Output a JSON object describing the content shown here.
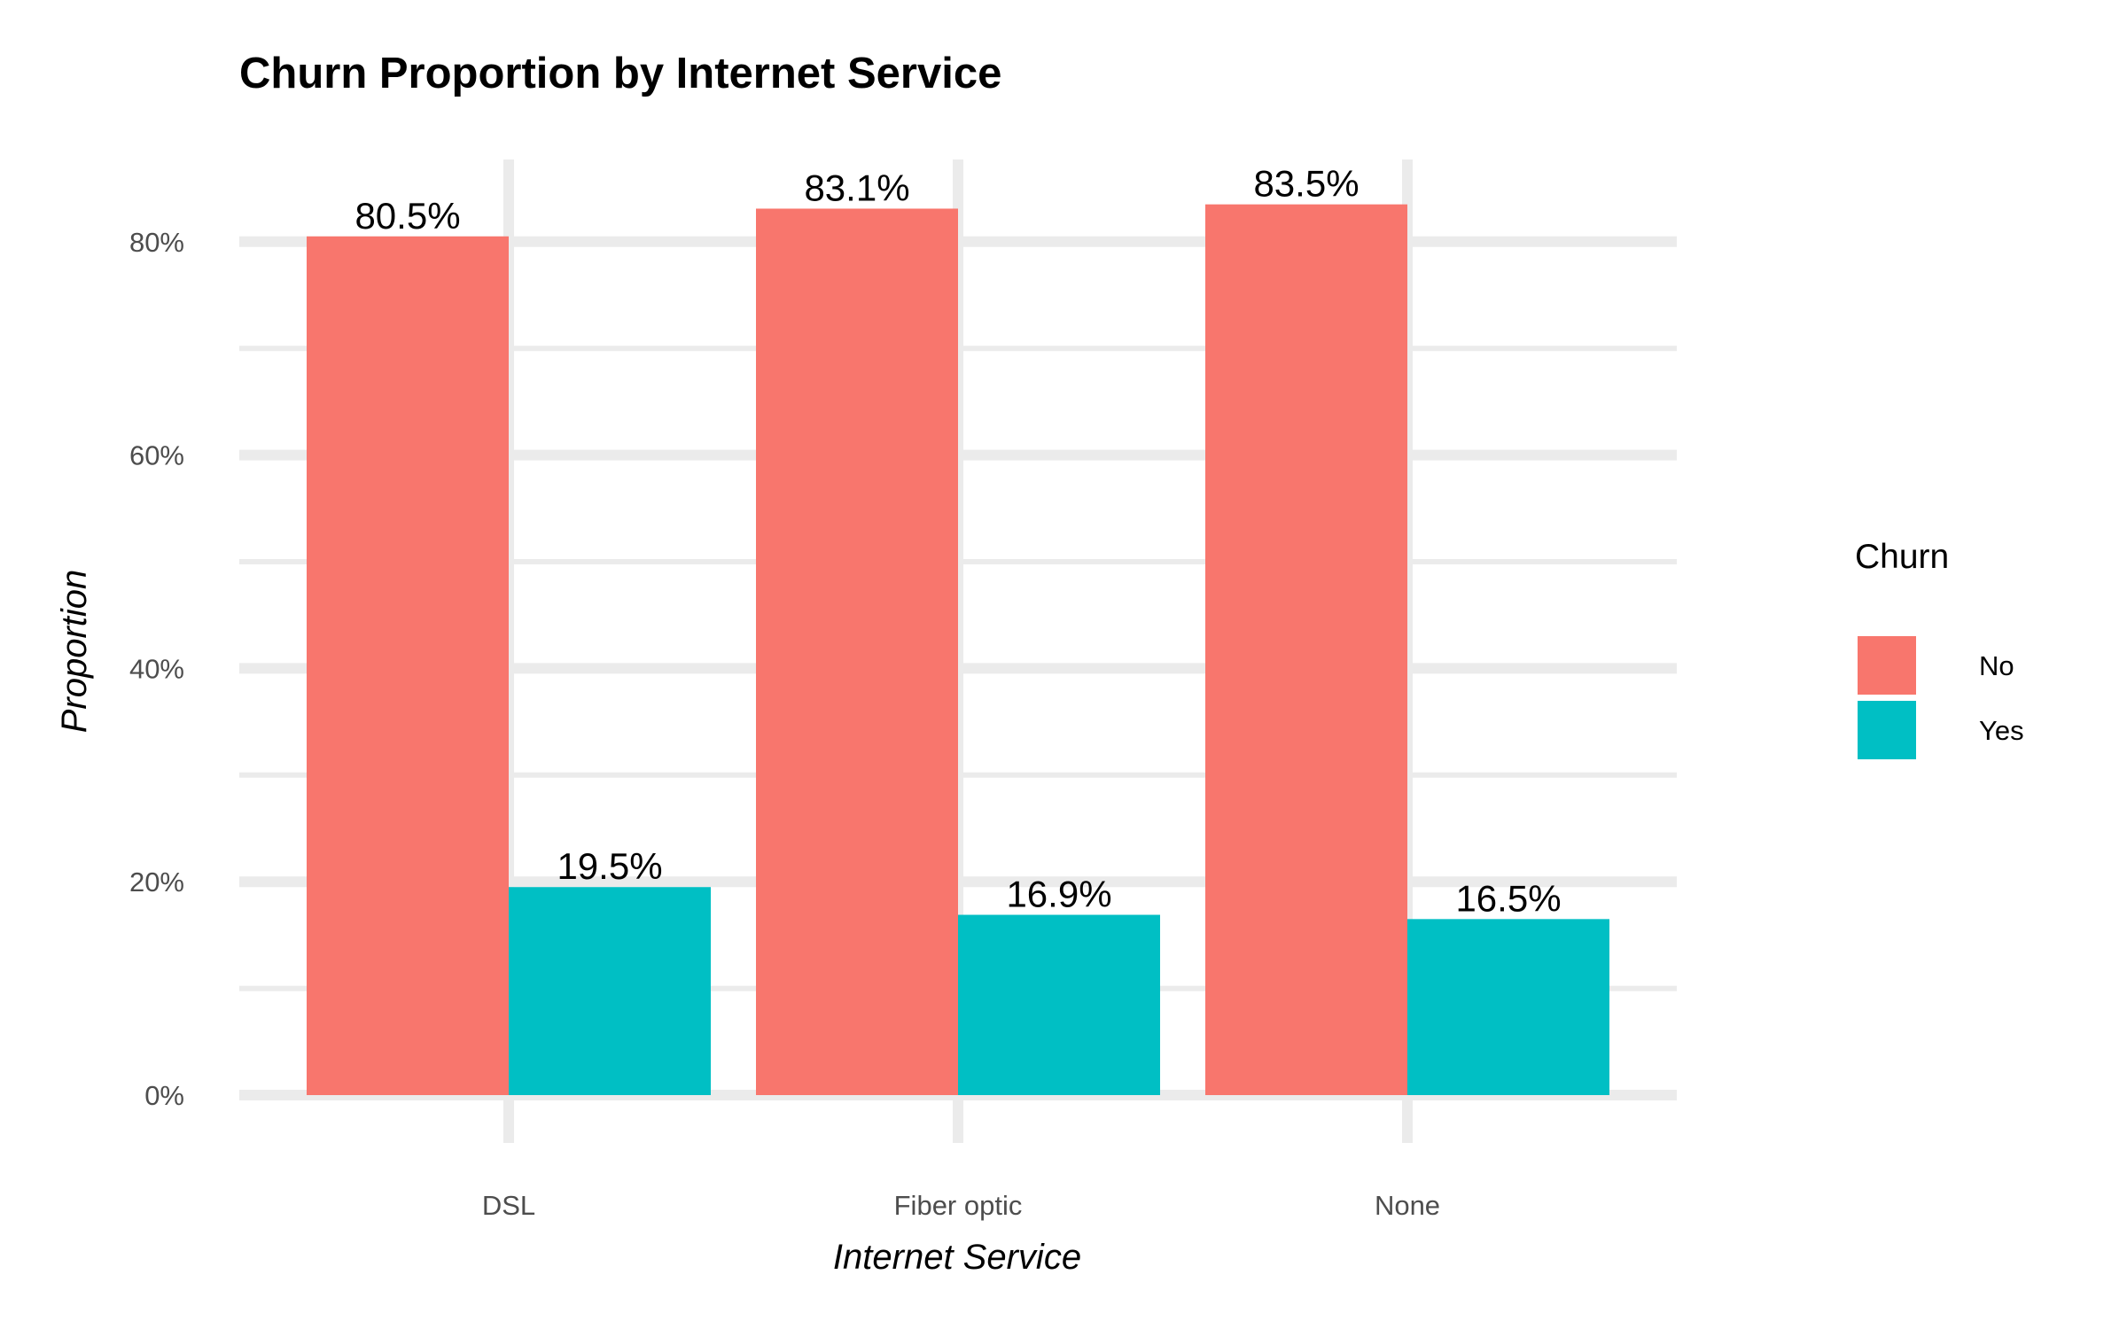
{
  "chart_data": {
    "type": "bar",
    "title": "Churn Proportion by Internet Service",
    "xlabel": "Internet Service",
    "ylabel": "Proportion",
    "categories": [
      "DSL",
      "Fiber optic",
      "None"
    ],
    "series": [
      {
        "name": "No",
        "values": [
          0.805,
          0.831,
          0.835
        ],
        "labels": [
          "80.5%",
          "83.1%",
          "83.5%"
        ],
        "color": "#F8766D"
      },
      {
        "name": "Yes",
        "values": [
          0.195,
          0.169,
          0.165
        ],
        "labels": [
          "19.5%",
          "16.9%",
          "16.5%"
        ],
        "color": "#00BFC4"
      }
    ],
    "ylim": [
      0,
      0.87
    ],
    "y_ticks": [
      0,
      0.2,
      0.4,
      0.6,
      0.8
    ],
    "y_tick_labels": [
      "0%",
      "20%",
      "40%",
      "60%",
      "80%"
    ],
    "grid": true,
    "legend": {
      "title": "Churn",
      "position": "right",
      "entries": [
        "No",
        "Yes"
      ]
    }
  }
}
